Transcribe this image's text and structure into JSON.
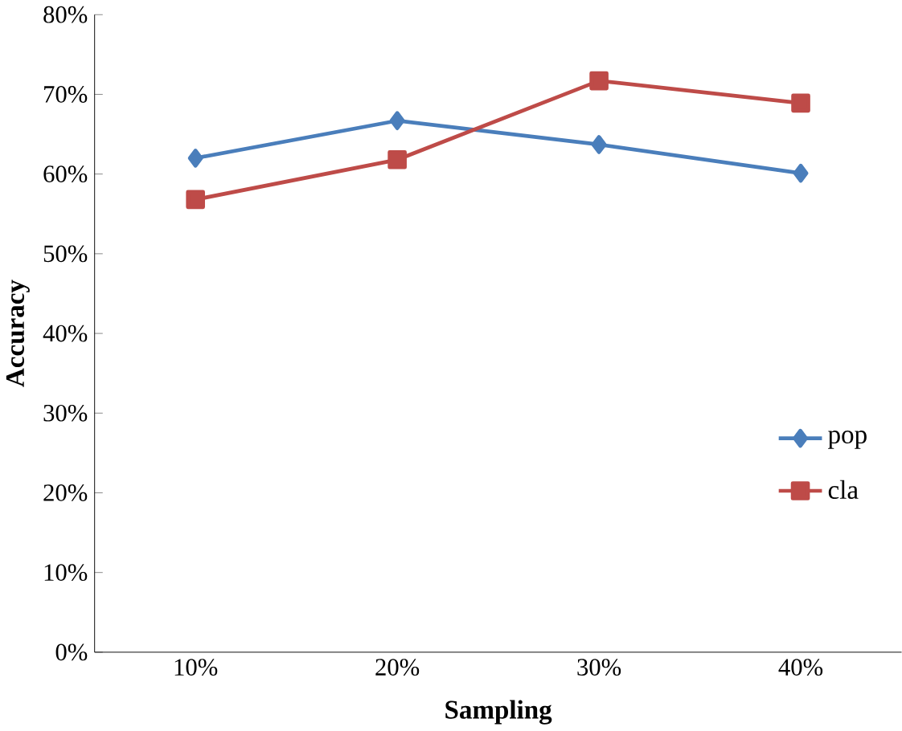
{
  "chart_data": {
    "type": "line",
    "xlabel": "Sampling",
    "ylabel": "Accuracy",
    "categories": [
      "10%",
      "20%",
      "30%",
      "40%"
    ],
    "series": [
      {
        "name": "pop",
        "color": "#4a7ebb",
        "marker": "diamond",
        "values": [
          62.0,
          66.7,
          63.7,
          60.1
        ]
      },
      {
        "name": "cla",
        "color": "#be4b48",
        "marker": "square",
        "values": [
          56.8,
          61.8,
          71.7,
          68.9
        ]
      }
    ],
    "ylim": [
      0,
      80
    ],
    "yticks": [
      {
        "value": 0,
        "label": "0%"
      },
      {
        "value": 10,
        "label": "10%"
      },
      {
        "value": 20,
        "label": "20%"
      },
      {
        "value": 30,
        "label": "30%"
      },
      {
        "value": 40,
        "label": "40%"
      },
      {
        "value": 50,
        "label": "50%"
      },
      {
        "value": 60,
        "label": "60%"
      },
      {
        "value": 70,
        "label": "70%"
      },
      {
        "value": 80,
        "label": "80%"
      }
    ],
    "grid": false,
    "legend": "right",
    "line_style": "solid"
  }
}
